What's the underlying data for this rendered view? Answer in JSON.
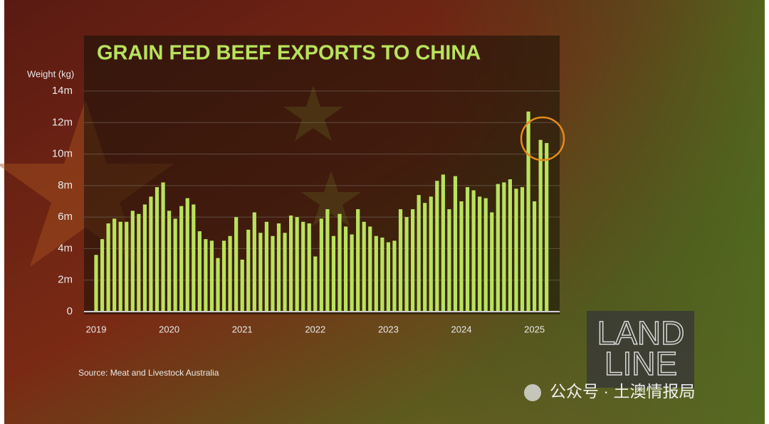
{
  "chart_data": {
    "type": "bar",
    "title": "GRAIN FED BEEF EXPORTS TO CHINA",
    "y_label": "Weight (kg)",
    "source": "Source:  Meat and Livestock Australia",
    "logo": [
      "LAND",
      "LINE"
    ],
    "watermark": "公众号 · 土澳情报局",
    "color": "#b8e35c",
    "grid": true,
    "categories": [
      "2019",
      null,
      null,
      null,
      null,
      null,
      null,
      null,
      null,
      null,
      null,
      null,
      "2020",
      null,
      null,
      null,
      null,
      null,
      null,
      null,
      null,
      null,
      null,
      null,
      "2021",
      null,
      null,
      null,
      null,
      null,
      null,
      null,
      null,
      null,
      null,
      null,
      "2022",
      null,
      null,
      null,
      null,
      null,
      null,
      null,
      null,
      null,
      null,
      null,
      "2023",
      null,
      null,
      null,
      null,
      null,
      null,
      null,
      null,
      null,
      null,
      null,
      "2024",
      null,
      null,
      null,
      null,
      null,
      null,
      null,
      null,
      null,
      null,
      null,
      "2025",
      null,
      null
    ],
    "values": [
      3600000,
      4600000,
      5600000,
      5900000,
      5700000,
      5700000,
      6400000,
      6200000,
      6800000,
      7300000,
      7900000,
      8200000,
      6400000,
      5900000,
      6700000,
      7200000,
      6800000,
      5100000,
      4600000,
      4500000,
      3400000,
      4500000,
      4800000,
      6000000,
      3300000,
      5200000,
      6300000,
      5000000,
      5700000,
      4800000,
      5600000,
      5000000,
      6100000,
      6000000,
      5700000,
      5600000,
      3500000,
      5900000,
      6500000,
      4800000,
      6200000,
      5400000,
      4900000,
      6500000,
      5700000,
      5400000,
      4800000,
      4700000,
      4400000,
      4500000,
      6500000,
      6000000,
      6500000,
      7400000,
      6900000,
      7300000,
      8300000,
      8700000,
      6500000,
      8600000,
      7000000,
      7900000,
      7700000,
      7300000,
      7200000,
      6300000,
      8100000,
      8200000,
      8400000,
      7800000,
      7900000,
      12700000,
      7000000,
      10900000,
      10700000
    ],
    "ylim": [
      0,
      14000000
    ],
    "yticks": [
      {
        "value": 0,
        "label": "0"
      },
      {
        "value": 2000000,
        "label": "2m"
      },
      {
        "value": 4000000,
        "label": "4m"
      },
      {
        "value": 6000000,
        "label": "6m"
      },
      {
        "value": 8000000,
        "label": "8m"
      },
      {
        "value": 10000000,
        "label": "10m"
      },
      {
        "value": 12000000,
        "label": "12m"
      },
      {
        "value": 14000000,
        "label": "14m"
      }
    ]
  }
}
